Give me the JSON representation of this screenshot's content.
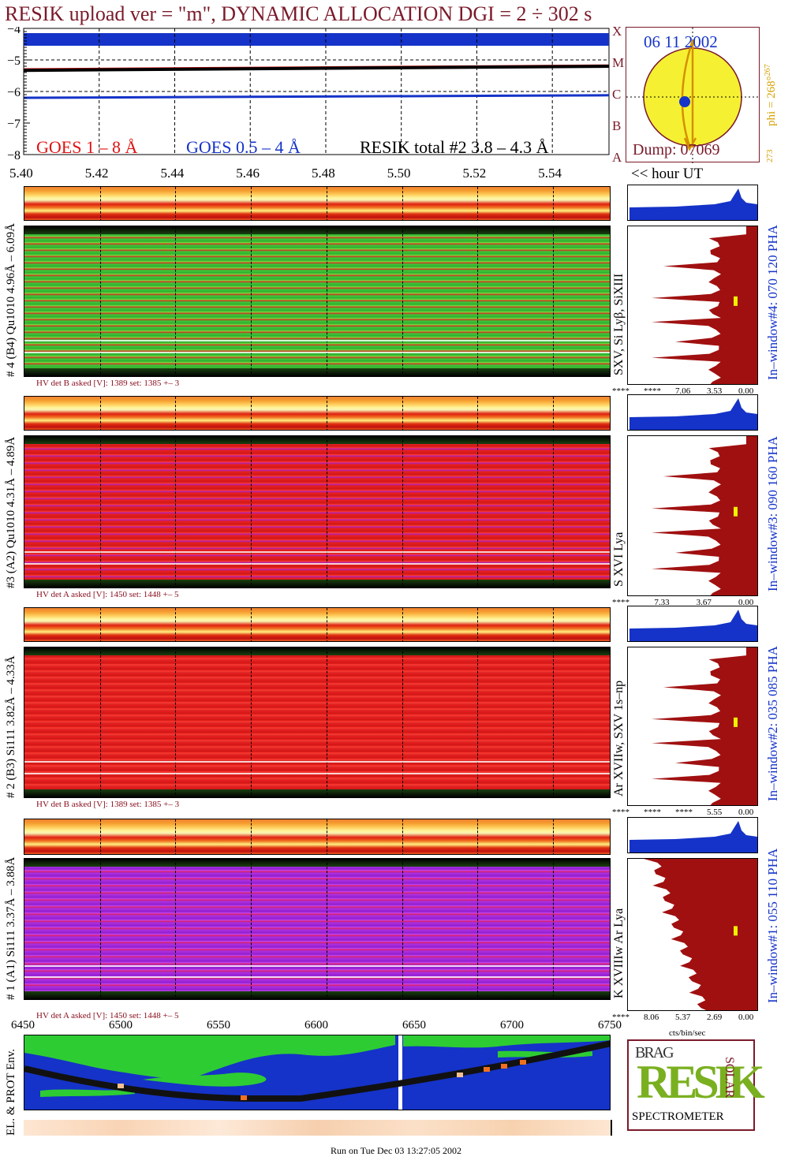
{
  "title": "RESIK upload ver = \"m\", DYNAMIC ALLOCATION  DGI =   2 ÷ 302 s",
  "chart_data": [
    {
      "type": "line",
      "name": "goes_lightcurves",
      "ylim": [
        -8,
        -4
      ],
      "xlim": [
        5.4,
        5.555
      ],
      "y_ticks": [
        "−4",
        "−5",
        "−6",
        "−7",
        "−8"
      ],
      "x_ticks": [
        "5.40",
        "5.42",
        "5.44",
        "5.46",
        "5.48",
        "5.50",
        "5.52",
        "5.54"
      ],
      "x_tick_values": [
        5.4,
        5.42,
        5.44,
        5.46,
        5.48,
        5.5,
        5.52,
        5.54
      ],
      "flare_classes": [
        "X",
        "M",
        "C",
        "B",
        "A"
      ],
      "x_axis_note": "<< hour UT",
      "series": [
        {
          "name": "GOES 1 – 8 Å",
          "color": "#e01010",
          "y": [
            -5.3,
            -5.18
          ]
        },
        {
          "name": "GOES 0.5 – 4 Å",
          "color": "#1533c8",
          "y": [
            -6.2,
            -6.12
          ]
        },
        {
          "name": "RESIK total #2  3.8 – 4.3 Å",
          "color": "#000000",
          "y": [
            -5.33,
            -5.2
          ]
        }
      ]
    },
    {
      "type": "heatmap",
      "name": "spectra_channels",
      "x_ticks": [
        "6450",
        "6500",
        "6550",
        "6600",
        "6650",
        "6700",
        "6750"
      ],
      "x_tick_values": [
        6450,
        6500,
        6550,
        6600,
        6650,
        6700,
        6750
      ],
      "xlim": [
        6450,
        6750
      ],
      "channels": [
        {
          "label": "# 4 (B4) Qu1010 4.96Å – 6.09Å",
          "lines": "SXV, Si Lyβ, SiXIII",
          "hv": "HV det B asked [V]:  1389 set:  1385  +–   3",
          "window": "In–window#4:  070 120 PHA",
          "scale": [
            "****",
            "****",
            "7.06",
            "3.53",
            "0.00"
          ]
        },
        {
          "label": "#3 (A2) Qu1010  4.31Å – 4.89Å",
          "lines": "S XVI Lya",
          "hv": "HV det A asked [V]:  1450 set:  1448  +–   5",
          "window": "In–window#3:  090 160 PHA",
          "scale": [
            "****",
            "7.33",
            "3.67",
            "0.00"
          ]
        },
        {
          "label": "# 2 (B3) Si111  3.82Å – 4.33Å",
          "lines": "Ar XVIIw,  SXV 1s–np",
          "hv": "HV det B asked [V]:  1389 set:  1385  +–   3",
          "window": "In–window#2:  035 085 PHA",
          "scale": [
            "****",
            "****",
            "****",
            "5.55",
            "0.00"
          ]
        },
        {
          "label": "# 1 (A1) Si111  3.37Å – 3.88Å",
          "lines": "K XVIIIw  Ar Lya",
          "hv": "HV det A asked [V]:  1450 set:  1448  +–   5",
          "window": "In–window#1:  055 110 PHA",
          "scale": [
            "****",
            "8.06",
            "5.37",
            "2.69",
            "0.00"
          ]
        }
      ],
      "hist_xlabel": "cts/bin/sec"
    }
  ],
  "sun": {
    "date": "06 11 2002",
    "dump": "Dump: 07069",
    "phi": "phi = 268°",
    "phi_sup": "267",
    "phi_low": "273"
  },
  "env_label": "EL. & PROT Env.",
  "logo": {
    "word": "RESIK",
    "top": "BRAG",
    "side": "SOLAR",
    "bottom": "SPECTROMETER"
  },
  "footer": "Run on Tue Dec 03 13:27:05 2002",
  "colors": {
    "title": "#7a1a2a",
    "blue": "#1533c8",
    "red": "#e01010",
    "dark_red": "#a01010",
    "green": "#2ecc33",
    "yellow": "#f2f200",
    "orange": "#d6a000"
  }
}
